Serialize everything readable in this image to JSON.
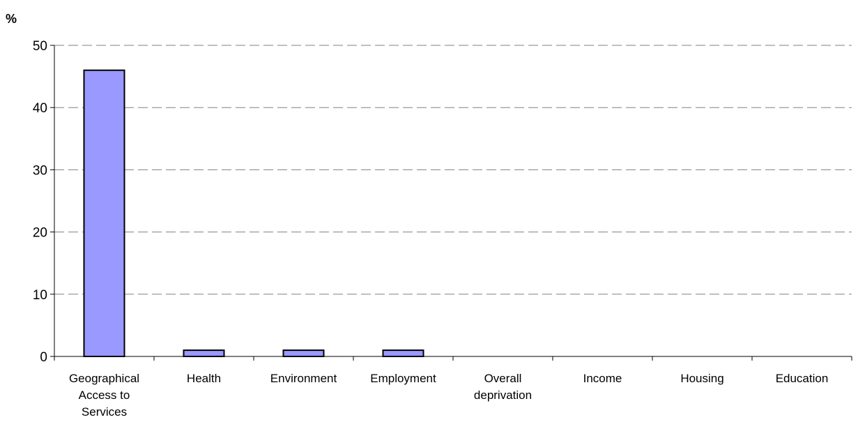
{
  "chart_data": {
    "type": "bar",
    "title": "",
    "xlabel": "",
    "ylabel": "%",
    "ylim": [
      0,
      50
    ],
    "yticks": [
      0,
      10,
      20,
      30,
      40,
      50
    ],
    "grid": true,
    "categories": [
      "Geographical Access to Services",
      "Health",
      "Environment",
      "Employment",
      "Overall deprivation",
      "Income",
      "Housing",
      "Education"
    ],
    "category_lines": [
      [
        "Geographical",
        "Access to",
        "Services"
      ],
      [
        "Health"
      ],
      [
        "Environment"
      ],
      [
        "Employment"
      ],
      [
        "Overall",
        "deprivation"
      ],
      [
        "Income"
      ],
      [
        "Housing"
      ],
      [
        "Education"
      ]
    ],
    "values": [
      46,
      1,
      1,
      1,
      0,
      0,
      0,
      0
    ],
    "colors": {
      "bar_fill": "#9999FF",
      "bar_stroke": "#000000",
      "grid": "#808080"
    }
  }
}
